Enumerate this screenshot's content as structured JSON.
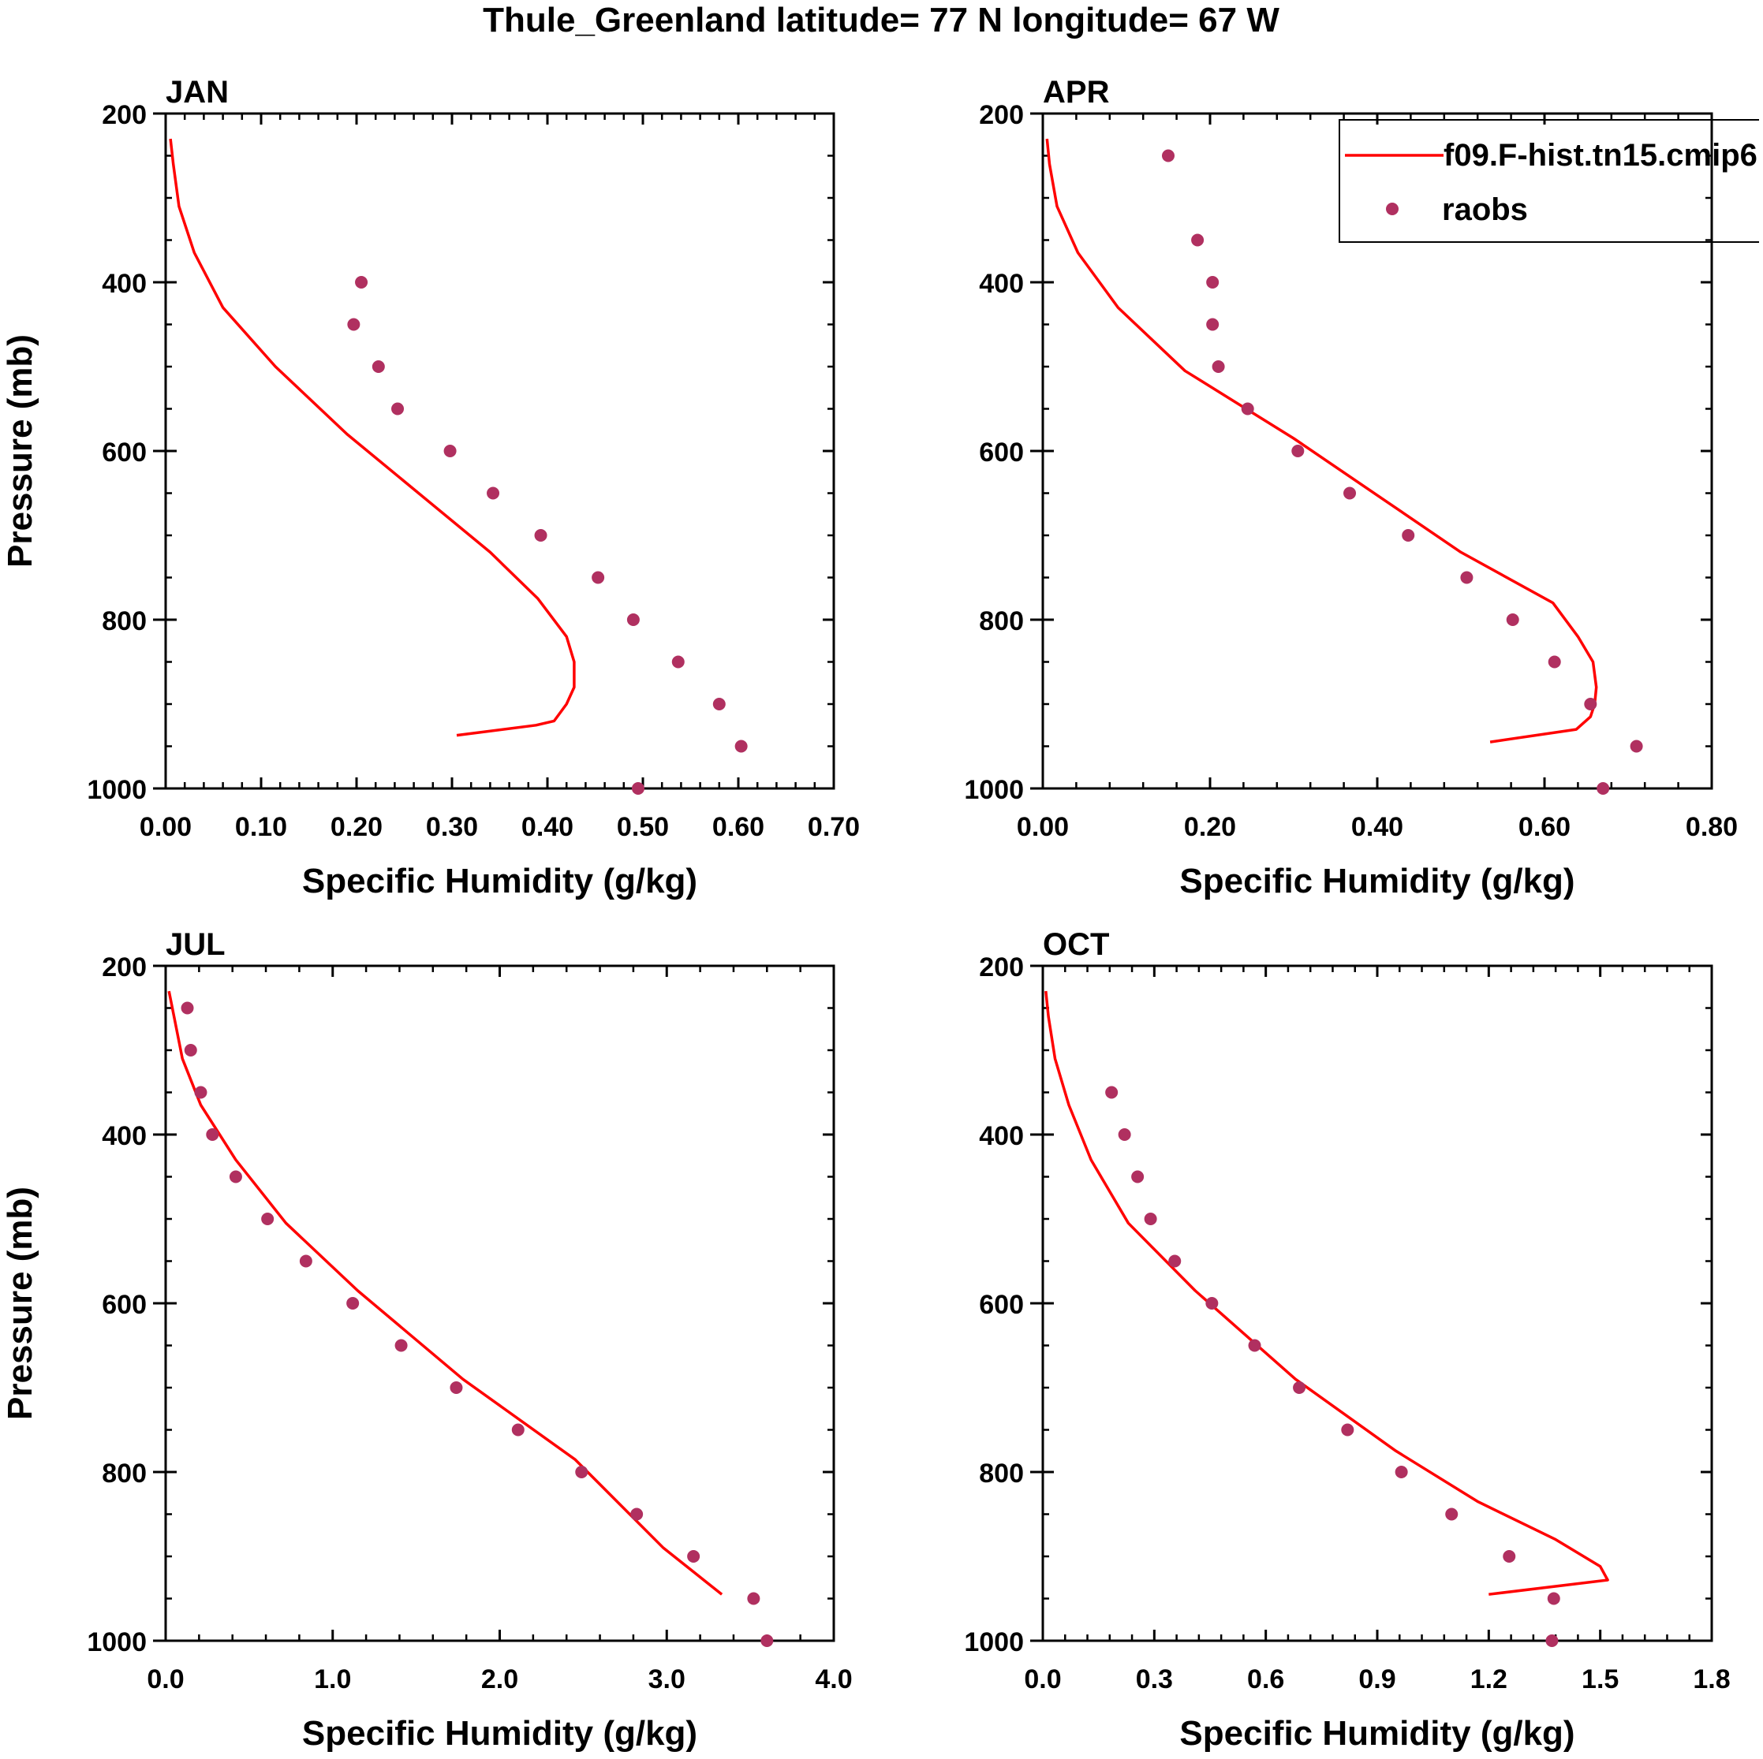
{
  "figure": {
    "title": "Thule_Greenland  latitude= 77 N longitude= 67 W"
  },
  "legend": {
    "model_label": "f09.F-hist.tn15.cmip6",
    "obs_label": "raobs"
  },
  "colors": {
    "model_line": "#ff0000",
    "obs_marker": "#b03060",
    "axis": "#000000"
  },
  "chart_data": [
    {
      "type": "line",
      "title": "JAN",
      "xlabel": "Specific Humidity (g/kg)",
      "ylabel": "Pressure (mb)",
      "xlim": [
        0,
        0.7
      ],
      "ylim": [
        1000,
        200
      ],
      "y_reversed": true,
      "x_ticks": [
        "0.00",
        "0.10",
        "0.20",
        "0.30",
        "0.40",
        "0.50",
        "0.60",
        "0.70"
      ],
      "y_ticks": [
        "200",
        "400",
        "600",
        "800",
        "1000"
      ],
      "grid": false,
      "legend": "none",
      "series": [
        {
          "name": "f09.F-hist.tn15.cmip6",
          "kind": "line",
          "x": [
            0.005,
            0.008,
            0.014,
            0.03,
            0.06,
            0.115,
            0.19,
            0.34,
            0.39,
            0.42,
            0.428,
            0.428,
            0.42,
            0.407,
            0.388,
            0.305
          ],
          "y": [
            230,
            260,
            310,
            365,
            430,
            500,
            580,
            720,
            775,
            820,
            850,
            880,
            900,
            920,
            925,
            937
          ]
        },
        {
          "name": "raobs",
          "kind": "scatter",
          "x": [
            0.205,
            0.197,
            0.223,
            0.243,
            0.298,
            0.343,
            0.393,
            0.453,
            0.49,
            0.537,
            0.58,
            0.603,
            0.495
          ],
          "y": [
            400,
            450,
            500,
            550,
            600,
            650,
            700,
            750,
            800,
            850,
            900,
            950,
            1000
          ]
        }
      ]
    },
    {
      "type": "line",
      "title": "APR",
      "xlabel": "Specific Humidity (g/kg)",
      "ylabel": "",
      "xlim": [
        0,
        0.8
      ],
      "ylim": [
        1000,
        200
      ],
      "y_reversed": true,
      "x_ticks": [
        "0.00",
        "0.20",
        "0.40",
        "0.60",
        "0.80"
      ],
      "y_ticks": [
        "200",
        "400",
        "600",
        "800",
        "1000"
      ],
      "grid": false,
      "legend": "top-right",
      "series": [
        {
          "name": "f09.F-hist.tn15.cmip6",
          "kind": "line",
          "x": [
            0.005,
            0.008,
            0.017,
            0.042,
            0.09,
            0.17,
            0.3,
            0.5,
            0.61,
            0.64,
            0.658,
            0.662,
            0.66,
            0.655,
            0.638,
            0.535
          ],
          "y": [
            230,
            260,
            310,
            365,
            430,
            505,
            585,
            720,
            780,
            820,
            850,
            880,
            900,
            915,
            930,
            945
          ]
        },
        {
          "name": "raobs",
          "kind": "scatter",
          "x": [
            0.15,
            0.185,
            0.203,
            0.203,
            0.21,
            0.245,
            0.305,
            0.367,
            0.437,
            0.507,
            0.562,
            0.612,
            0.655,
            0.71,
            0.67
          ],
          "y": [
            250,
            350,
            400,
            450,
            500,
            550,
            600,
            650,
            700,
            750,
            800,
            850,
            900,
            950,
            1000
          ]
        }
      ]
    },
    {
      "type": "line",
      "title": "JUL",
      "xlabel": "Specific Humidity (g/kg)",
      "ylabel": "Pressure (mb)",
      "xlim": [
        0,
        4
      ],
      "ylim": [
        1000,
        200
      ],
      "y_reversed": true,
      "x_ticks": [
        "0.0",
        "1.0",
        "2.0",
        "3.0",
        "4.0"
      ],
      "y_ticks": [
        "200",
        "400",
        "600",
        "800",
        "1000"
      ],
      "grid": false,
      "legend": "none",
      "series": [
        {
          "name": "f09.F-hist.tn15.cmip6",
          "kind": "line",
          "x": [
            0.02,
            0.05,
            0.1,
            0.21,
            0.42,
            0.72,
            1.15,
            1.78,
            2.45,
            2.98,
            3.33
          ],
          "y": [
            230,
            260,
            310,
            365,
            430,
            505,
            585,
            690,
            785,
            890,
            945
          ]
        },
        {
          "name": "raobs",
          "kind": "scatter",
          "x": [
            0.13,
            0.15,
            0.21,
            0.28,
            0.42,
            0.61,
            0.84,
            1.12,
            1.41,
            1.74,
            2.11,
            2.49,
            2.82,
            3.16,
            3.52,
            3.6
          ],
          "y": [
            250,
            300,
            350,
            400,
            450,
            500,
            550,
            600,
            650,
            700,
            750,
            800,
            850,
            900,
            950,
            1000
          ]
        }
      ]
    },
    {
      "type": "line",
      "title": "OCT",
      "xlabel": "Specific Humidity (g/kg)",
      "ylabel": "",
      "xlim": [
        0,
        1.8
      ],
      "ylim": [
        1000,
        200
      ],
      "y_reversed": true,
      "x_ticks": [
        "0.0",
        "0.3",
        "0.6",
        "0.9",
        "1.2",
        "1.5",
        "1.8"
      ],
      "y_ticks": [
        "200",
        "400",
        "600",
        "800",
        "1000"
      ],
      "grid": false,
      "legend": "none",
      "series": [
        {
          "name": "f09.F-hist.tn15.cmip6",
          "kind": "line",
          "x": [
            0.008,
            0.015,
            0.033,
            0.07,
            0.13,
            0.23,
            0.41,
            0.68,
            0.95,
            1.17,
            1.38,
            1.5,
            1.52,
            1.2
          ],
          "y": [
            230,
            260,
            310,
            365,
            430,
            505,
            585,
            690,
            775,
            835,
            880,
            912,
            928,
            945
          ]
        },
        {
          "name": "raobs",
          "kind": "scatter",
          "x": [
            0.185,
            0.22,
            0.255,
            0.29,
            0.355,
            0.455,
            0.57,
            0.69,
            0.82,
            0.965,
            1.1,
            1.255,
            1.375,
            1.37
          ],
          "y": [
            350,
            400,
            450,
            500,
            550,
            600,
            650,
            700,
            750,
            800,
            850,
            900,
            950,
            1000
          ]
        }
      ]
    }
  ]
}
